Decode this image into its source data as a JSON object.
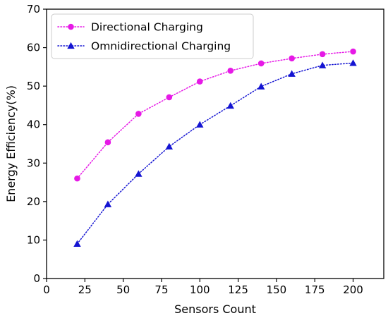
{
  "chart_data": {
    "type": "line",
    "title": "",
    "xlabel": "Sensors Count",
    "ylabel": "Energy Efficiency(%)",
    "xlim": [
      0,
      220
    ],
    "ylim": [
      0,
      70
    ],
    "xticks": [
      0,
      25,
      50,
      75,
      100,
      125,
      150,
      175,
      200
    ],
    "yticks": [
      0,
      10,
      20,
      30,
      40,
      50,
      60,
      70
    ],
    "grid": false,
    "legend_position": "top-left",
    "x": [
      20,
      40,
      60,
      80,
      100,
      120,
      140,
      160,
      180,
      200
    ],
    "series": [
      {
        "name": "Directional Charging",
        "values": [
          26.0,
          35.4,
          42.8,
          47.1,
          51.2,
          54.0,
          55.9,
          57.2,
          58.3,
          59.0
        ],
        "color": "#e619e6",
        "marker": "circle",
        "line_style": "dotted"
      },
      {
        "name": "Omnidirectional Charging",
        "values": [
          9.0,
          19.3,
          27.2,
          34.3,
          40.0,
          44.9,
          49.9,
          53.2,
          55.4,
          56.0
        ],
        "color": "#1414d2",
        "marker": "triangle",
        "line_style": "dotted"
      }
    ]
  }
}
